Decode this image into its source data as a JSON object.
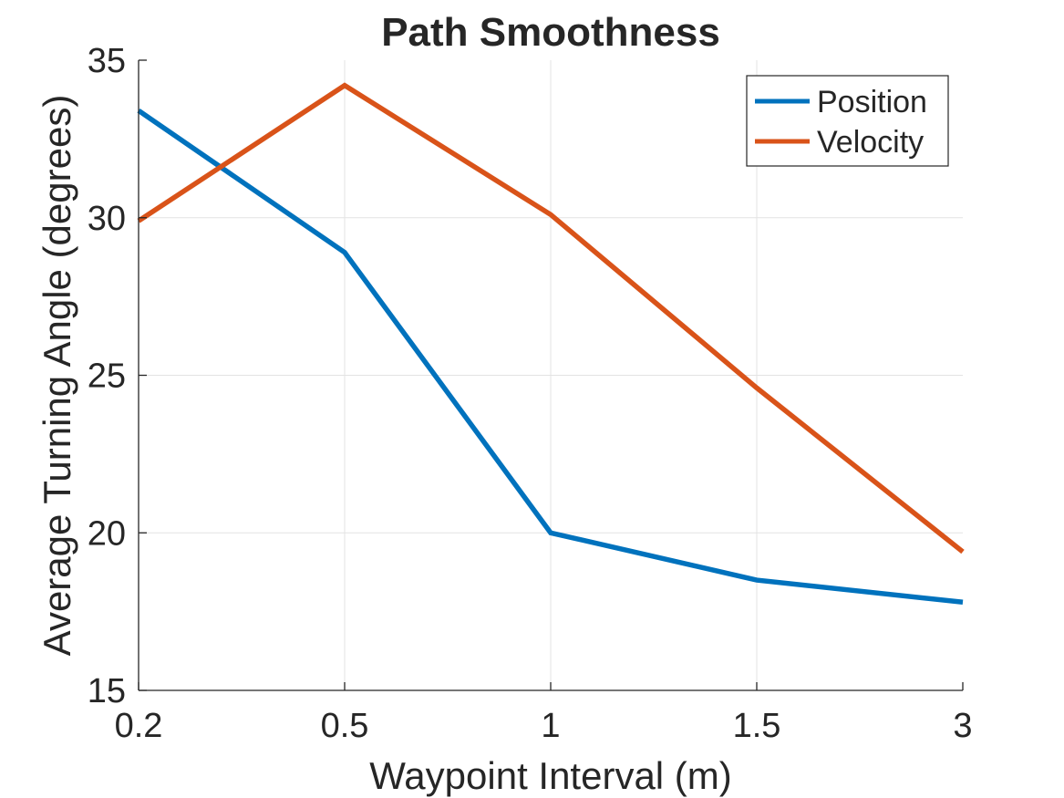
{
  "chart_data": {
    "type": "line",
    "title": "Path Smoothness",
    "xlabel": "Waypoint Interval (m)",
    "ylabel": "Average Turning Angle (degrees)",
    "categories": [
      "0.2",
      "0.5",
      "1",
      "1.5",
      "3"
    ],
    "x_tick_labels": [
      "0.2",
      "0.5",
      "1",
      "1.5",
      "3"
    ],
    "y_ticks": [
      15,
      20,
      25,
      30,
      35
    ],
    "y_tick_labels": [
      "15",
      "20",
      "25",
      "30",
      "35"
    ],
    "ylim": [
      15,
      35
    ],
    "grid": true,
    "legend_position": "top-right",
    "series": [
      {
        "name": "Position",
        "color": "#0072BD",
        "values": [
          33.4,
          28.9,
          20.0,
          18.5,
          17.8
        ]
      },
      {
        "name": "Velocity",
        "color": "#D95319",
        "values": [
          29.9,
          34.2,
          30.1,
          24.6,
          19.4
        ]
      }
    ]
  }
}
